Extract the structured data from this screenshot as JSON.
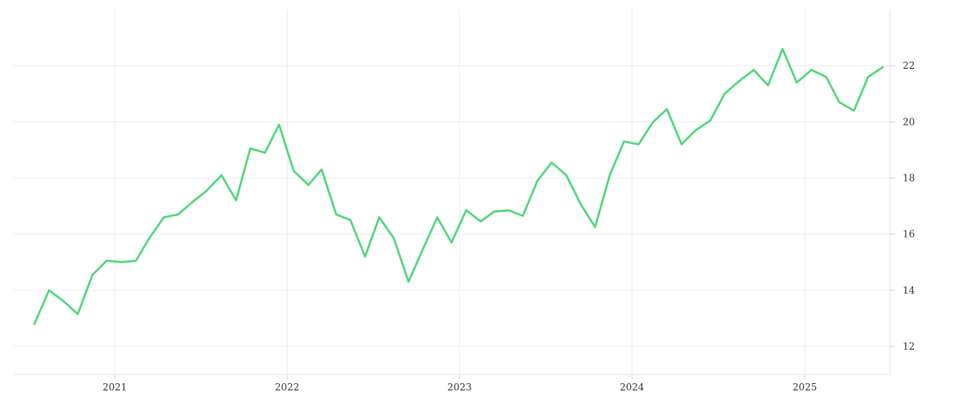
{
  "chart_data": {
    "type": "line",
    "title": "",
    "xlabel": "",
    "ylabel": "",
    "xlim": [
      "2020-06-01",
      "2025-06-30"
    ],
    "ylim": [
      11,
      24
    ],
    "grid": true,
    "y_axis_side": "right",
    "x_ticks": [
      {
        "label": "2021",
        "value": "2021-01-01"
      },
      {
        "label": "2022",
        "value": "2022-01-01"
      },
      {
        "label": "2023",
        "value": "2023-01-01"
      },
      {
        "label": "2024",
        "value": "2024-01-01"
      },
      {
        "label": "2025",
        "value": "2025-01-01"
      }
    ],
    "y_ticks": [
      12,
      14,
      16,
      18,
      20,
      22
    ],
    "series": [
      {
        "color": "#4fd67a",
        "x": [
          "2020-07",
          "2020-08",
          "2020-09",
          "2020-10",
          "2020-11",
          "2020-12",
          "2021-01",
          "2021-02",
          "2021-03",
          "2021-04",
          "2021-05",
          "2021-06",
          "2021-07",
          "2021-08",
          "2021-09",
          "2021-10",
          "2021-11",
          "2021-12",
          "2022-01",
          "2022-02",
          "2022-03",
          "2022-04",
          "2022-05",
          "2022-06",
          "2022-07",
          "2022-08",
          "2022-09",
          "2022-10",
          "2022-11",
          "2022-12",
          "2023-01",
          "2023-02",
          "2023-03",
          "2023-04",
          "2023-05",
          "2023-06",
          "2023-07",
          "2023-08",
          "2023-09",
          "2023-10",
          "2023-11",
          "2023-12",
          "2024-01",
          "2024-02",
          "2024-03",
          "2024-04",
          "2024-05",
          "2024-06",
          "2024-07",
          "2024-08",
          "2024-09",
          "2024-10",
          "2024-11",
          "2024-12",
          "2025-01",
          "2025-02",
          "2025-03",
          "2025-04",
          "2025-05",
          "2025-06"
        ],
        "values": [
          12.8,
          14.0,
          13.6,
          13.15,
          14.55,
          15.05,
          15.0,
          15.05,
          15.85,
          16.6,
          16.7,
          17.15,
          17.55,
          18.1,
          17.2,
          19.05,
          18.9,
          19.9,
          18.25,
          17.75,
          18.3,
          16.7,
          16.5,
          15.2,
          16.6,
          15.85,
          14.3,
          15.45,
          16.6,
          15.7,
          16.85,
          16.45,
          16.8,
          16.85,
          16.65,
          17.9,
          18.55,
          18.1,
          17.05,
          16.25,
          18.1,
          19.3,
          19.2,
          20.0,
          20.45,
          19.2,
          19.7,
          20.05,
          21.0,
          21.45,
          21.85,
          21.3,
          22.6,
          21.4,
          21.85,
          21.6,
          20.7,
          20.4,
          21.6,
          21.95
        ]
      }
    ]
  }
}
